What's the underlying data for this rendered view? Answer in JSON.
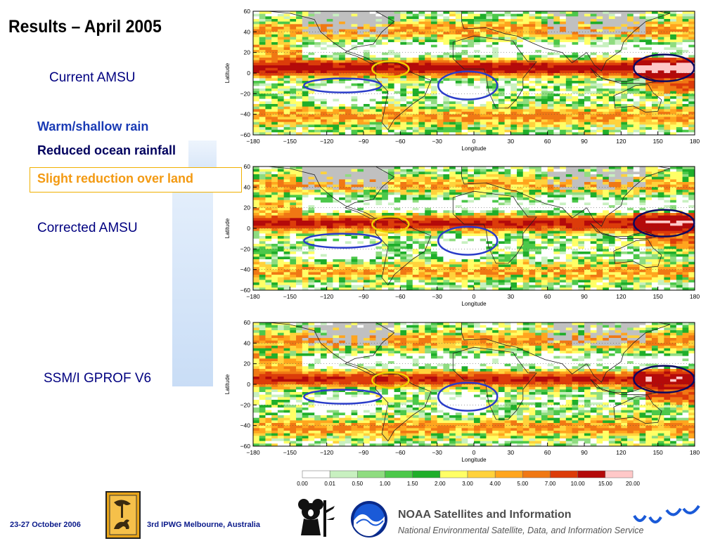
{
  "title": "Results – April 2005",
  "labels": {
    "current": "Current AMSU",
    "warm": "Warm/shallow rain",
    "reduced": "Reduced ocean rainfall",
    "slight": "Slight reduction over land",
    "corrected": "Corrected AMSU",
    "ssmi": "SSM/I GPROF V6"
  },
  "maps": {
    "lat_ticks": [
      "60",
      "40",
      "20",
      "0",
      "−20",
      "−40",
      "−60"
    ],
    "lon_ticks": [
      "−180",
      "−150",
      "−120",
      "−90",
      "−60",
      "−30",
      "0",
      "30",
      "60",
      "90",
      "120",
      "150",
      "180"
    ],
    "xlabel": "Longitude",
    "ylabel": "Latitude"
  },
  "colorbar": {
    "ticks": [
      "0.00",
      "0.01",
      "0.50",
      "1.00",
      "1.50",
      "2.00",
      "3.00",
      "4.00",
      "5.00",
      "7.00",
      "10.00",
      "15.00",
      "20.00"
    ],
    "colors": [
      "#ffffff",
      "#c8f0c0",
      "#8fdc80",
      "#4cc84a",
      "#1fae2a",
      "#ffff66",
      "#ffd23c",
      "#ffa51e",
      "#f07814",
      "#dc3c0a",
      "#b40a0a",
      "#ffc8c8"
    ]
  },
  "footer": {
    "date": "23-27 October 2006",
    "event": "3rd IPWG  Melbourne, Australia",
    "noaa_title": "NOAA Satellites and Information",
    "noaa_sub": "National Environmental Satellite, Data, and Information Service"
  },
  "colors": {
    "circle_blue": "#2a3cc8",
    "circle_yellow": "#f0d000",
    "circle_navy": "#0a0a60"
  }
}
